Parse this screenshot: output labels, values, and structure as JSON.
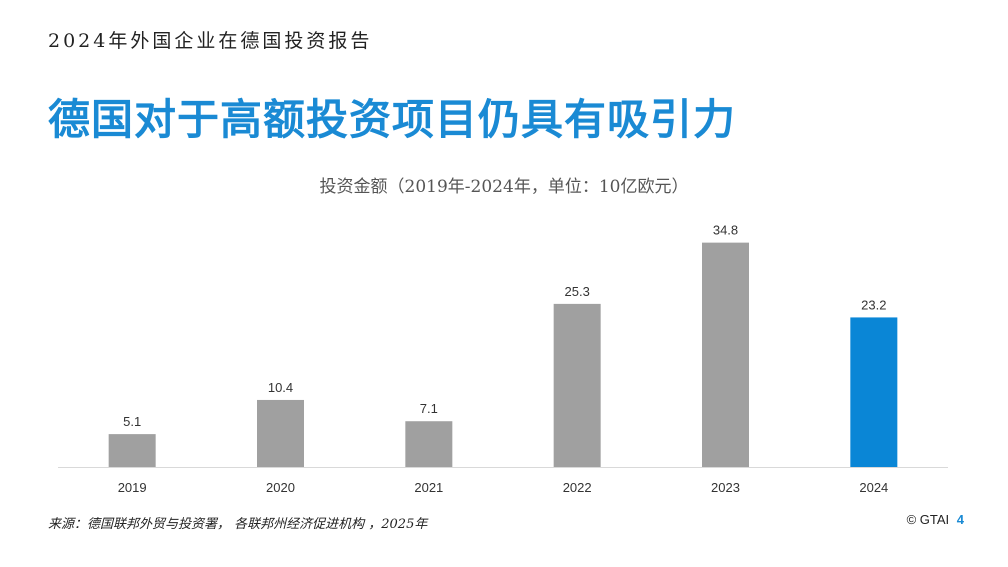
{
  "header": {
    "report_title": "2024年外国企业在德国投资报告"
  },
  "slide": {
    "title": "德国对于高额投资项目仍具有吸引力"
  },
  "chart_data": {
    "type": "bar",
    "title": "投资金额（2019年-2024年，单位：10亿欧元）",
    "categories": [
      "2019",
      "2020",
      "2021",
      "2022",
      "2023",
      "2024"
    ],
    "values": [
      5.1,
      10.4,
      7.1,
      25.3,
      34.8,
      23.2
    ],
    "value_labels": [
      "5.1",
      "10.4",
      "7.1",
      "25.3",
      "34.8",
      "23.2"
    ],
    "ylim": [
      0,
      38
    ],
    "grid": false,
    "legend": "none",
    "highlight_index": 5,
    "colors": {
      "bar": "#a0a0a0",
      "highlight": "#0a86d6",
      "axis": "#d9d9d9",
      "label": "#333333"
    }
  },
  "footer": {
    "source": "来源：德国联邦外贸与投资署， 各联邦州经济促进机构 ，2025年",
    "copyright": "© GTAI",
    "page_number": "4"
  }
}
